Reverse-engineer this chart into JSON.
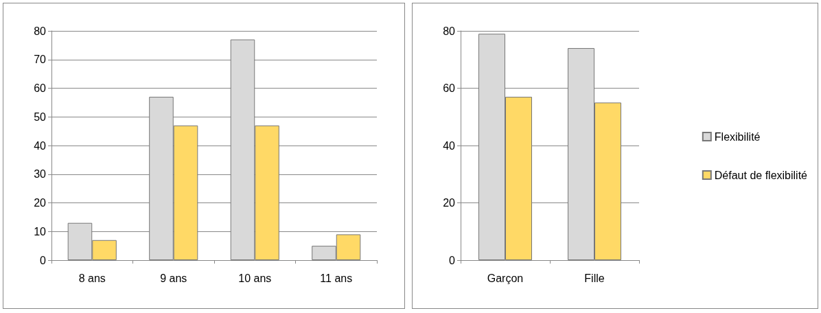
{
  "chart_data": [
    {
      "type": "bar",
      "categories": [
        "8 ans",
        "9 ans",
        "10 ans",
        "11 ans"
      ],
      "series": [
        {
          "color": "#d9d9d9",
          "values": [
            13,
            57,
            77,
            5
          ]
        },
        {
          "color": "#ffd966",
          "values": [
            7,
            47,
            47,
            9
          ]
        }
      ],
      "ylim": [
        0,
        80
      ],
      "yticks": [
        0,
        10,
        20,
        30,
        40,
        50,
        60,
        70,
        80
      ],
      "grid": "y",
      "legend": false
    },
    {
      "type": "bar",
      "categories": [
        "Garçon",
        "Fille"
      ],
      "series": [
        {
          "name": "Flexibilité",
          "color": "#d9d9d9",
          "values": [
            79,
            74
          ]
        },
        {
          "name": "Défaut de flexibilité",
          "color": "#ffd966",
          "values": [
            57,
            55
          ]
        }
      ],
      "ylim": [
        0,
        80
      ],
      "yticks": [
        0,
        20,
        40,
        60,
        80
      ],
      "grid": "y",
      "legend": "right"
    }
  ]
}
